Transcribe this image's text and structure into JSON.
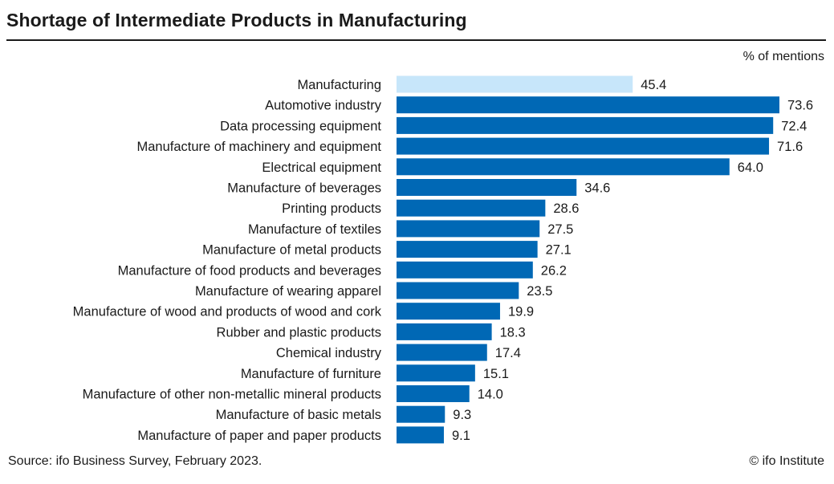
{
  "title": "Shortage of Intermediate Products in Manufacturing",
  "unit_label": "% of mentions",
  "footer": {
    "source": "Source: ifo Business Survey, February 2023.",
    "copyright": "© ifo Institute"
  },
  "colors": {
    "highlight": "#c7e6fa",
    "bar": "#0068b5",
    "text": "#1a1a1a"
  },
  "chart_data": {
    "type": "bar",
    "orientation": "horizontal",
    "title": "Shortage of Intermediate Products in Manufacturing",
    "xlabel": "% of mentions",
    "ylabel": "",
    "xlim": [
      0,
      75
    ],
    "grid": false,
    "highlighted_category": "Manufacturing",
    "categories": [
      "Manufacturing",
      "Automotive industry",
      "Data processing equipment",
      "Manufacture of machinery and equipment",
      "Electrical equipment",
      "Manufacture of beverages",
      "Printing products",
      "Manufacture of textiles",
      "Manufacture of metal products",
      "Manufacture of food products and beverages",
      "Manufacture of wearing apparel",
      "Manufacture of wood and products of wood and cork",
      "Rubber and plastic products",
      "Chemical industry",
      "Manufacture of furniture",
      "Manufacture of other non-metallic mineral products",
      "Manufacture of basic metals",
      "Manufacture of paper and paper products"
    ],
    "values": [
      45.4,
      73.6,
      72.4,
      71.6,
      64.0,
      34.6,
      28.6,
      27.5,
      27.1,
      26.2,
      23.5,
      19.9,
      18.3,
      17.4,
      15.1,
      14.0,
      9.3,
      9.1
    ],
    "value_labels": [
      "45.4",
      "73.6",
      "72.4",
      "71.6",
      "64.0",
      "34.6",
      "28.6",
      "27.5",
      "27.1",
      "26.2",
      "23.5",
      "19.9",
      "18.3",
      "17.4",
      "15.1",
      "14.0",
      "9.3",
      "9.1"
    ]
  }
}
